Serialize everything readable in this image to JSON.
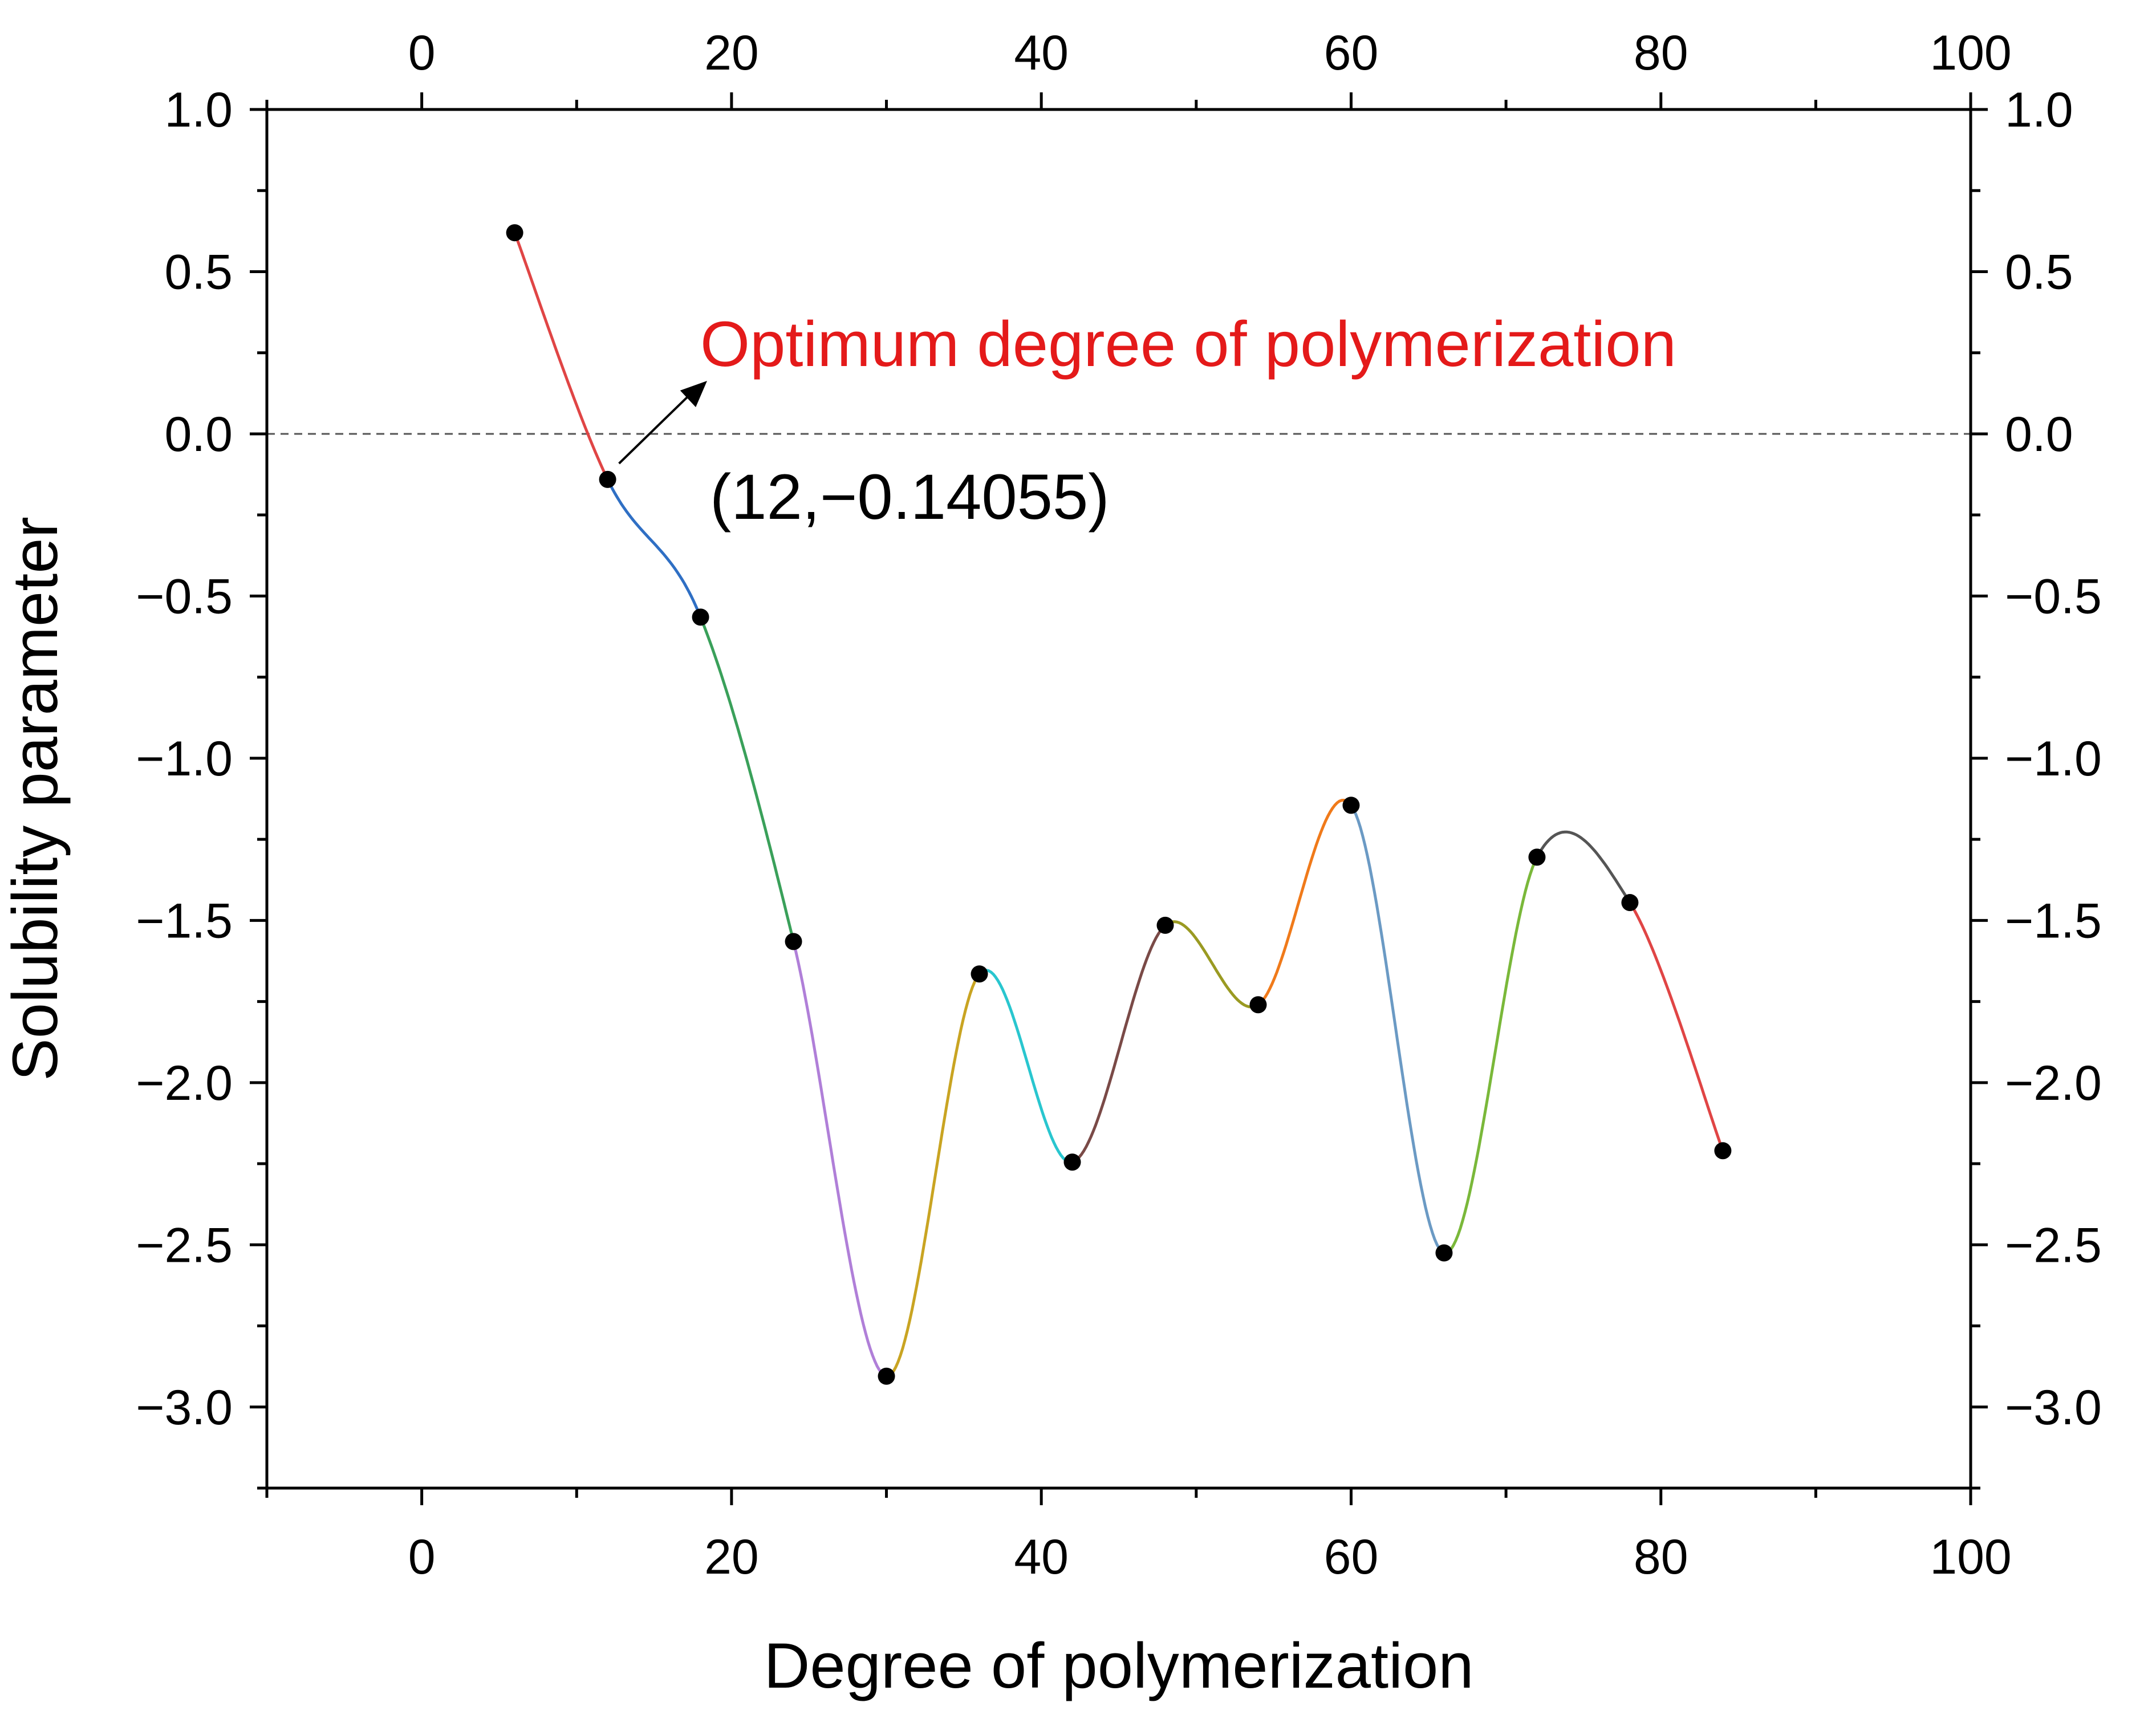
{
  "chart_data": {
    "type": "line",
    "title": "",
    "xlabel": "Degree of polymerization",
    "ylabel": "Solubility parameter",
    "xlim": [
      -10,
      100
    ],
    "ylim": [
      -3.25,
      1.0
    ],
    "x_ticks": [
      0,
      20,
      40,
      60,
      80,
      100
    ],
    "y_ticks": [
      1.0,
      0.5,
      0.0,
      -0.5,
      -1.0,
      -1.5,
      -2.0,
      -2.5,
      -3.0
    ],
    "x_tick_labels": [
      "0",
      "20",
      "40",
      "60",
      "80",
      "100"
    ],
    "y_tick_labels": [
      "1.0",
      "0.5",
      "0.0",
      "−0.5",
      "−1.0",
      "−1.5",
      "−2.0",
      "−2.5",
      "−3.0"
    ],
    "grid": false,
    "reference_line_y": 0.0,
    "points": {
      "x": [
        6,
        12,
        18,
        24,
        30,
        36,
        42,
        48,
        54,
        60,
        66,
        72,
        78,
        84
      ],
      "y": [
        0.62,
        -0.14055,
        -0.565,
        -1.565,
        -2.905,
        -1.665,
        -2.245,
        -1.515,
        -1.76,
        -1.145,
        -2.525,
        -1.305,
        -1.445,
        -2.21
      ]
    },
    "segment_colors": [
      "#e04545",
      "#2f6fc4",
      "#3aa05a",
      "#b07fd8",
      "#c9a422",
      "#29c6cf",
      "#7a4a47",
      "#9a9a22",
      "#f07a1a",
      "#6b9ac4",
      "#7ab83a",
      "#555555",
      "#e04545"
    ],
    "annotations": {
      "label": "Optimum degree of polymerization",
      "label_color": "#e41a1a",
      "point_label": "(12,−0.14055)",
      "point": [
        12,
        -0.14055
      ]
    }
  }
}
